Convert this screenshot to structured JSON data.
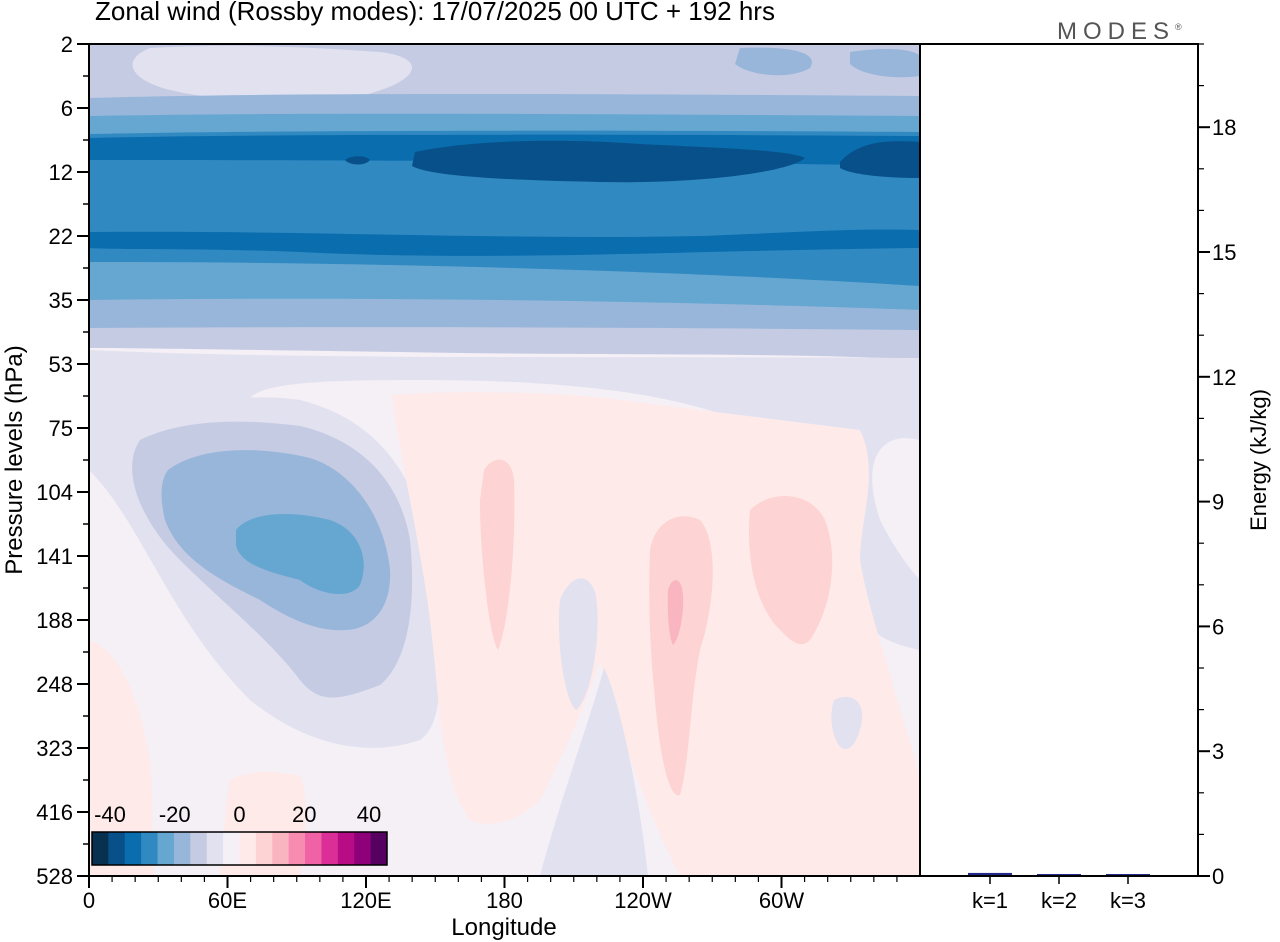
{
  "title": "Zonal wind (Rossby modes):  17/07/2025  00 UTC  + 192 hrs",
  "logo": "MODES",
  "logo_mark": "®",
  "chart_data": [
    {
      "type": "heatmap",
      "title": "Zonal wind (Rossby modes):  17/07/2025  00 UTC  + 192 hrs",
      "xlabel": "Longitude",
      "ylabel": "Pressure levels (hPa)",
      "x_ticks": [
        "0",
        "60E",
        "120E",
        "180",
        "120W",
        "60W"
      ],
      "y_ticks": [
        "2",
        "6",
        "12",
        "22",
        "35",
        "53",
        "75",
        "104",
        "141",
        "188",
        "248",
        "323",
        "416",
        "528"
      ],
      "colorbar": {
        "labels": [
          "-40",
          "-20",
          "0",
          "20",
          "40"
        ],
        "colors": [
          "#08304f",
          "#08508a",
          "#0a6eae",
          "#3189c2",
          "#66a7d1",
          "#98b6da",
          "#c4cbe3",
          "#e1e1ef",
          "#f5eff6",
          "#ffeaea",
          "#fdd3d3",
          "#f9b5c0",
          "#f78cb0",
          "#f062a6",
          "#db2f97",
          "#b80c86",
          "#8d0079",
          "#560062"
        ],
        "location": "bottom-left"
      },
      "bands": [
        {
          "level_from": "2",
          "level_to": "6",
          "color": "#c4cbe3"
        },
        {
          "level_from": "6",
          "level_to": "12",
          "color": "#66a7d1"
        },
        {
          "level_from": "12",
          "level_to": "22",
          "color": "#3189c2"
        },
        {
          "level_from": "22",
          "level_to": "35",
          "color": "#66a7d1"
        },
        {
          "level_from": "35",
          "level_to": "53",
          "color": "#c4cbe3"
        },
        {
          "level_from": "53",
          "level_to": "528",
          "color": "#f5eff6"
        }
      ]
    },
    {
      "type": "bar",
      "categories": [
        "k=1",
        "k=2",
        "k=3"
      ],
      "values": [
        0.05,
        0.02,
        0.01
      ],
      "ylabel": "Energy (kJ/kg)",
      "ylim": [
        0,
        20
      ],
      "y_ticks": [
        0,
        3,
        6,
        9,
        12,
        15,
        18
      ],
      "colors": [
        "#1f2a8a",
        "#1f2a8a",
        "#1f2a8a"
      ]
    }
  ]
}
